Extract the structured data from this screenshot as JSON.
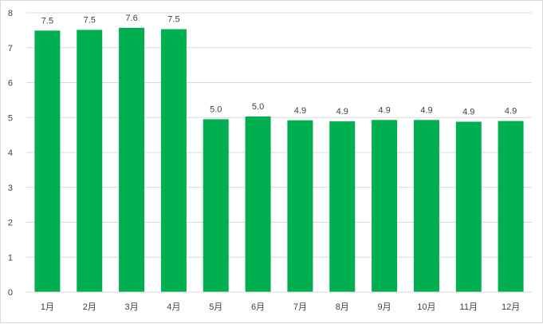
{
  "chart_data": {
    "type": "bar",
    "categories": [
      "1月",
      "2月",
      "3月",
      "4月",
      "5月",
      "6月",
      "7月",
      "8月",
      "9月",
      "10月",
      "11月",
      "12月"
    ],
    "values": [
      7.49,
      7.51,
      7.57,
      7.53,
      4.95,
      5.03,
      4.92,
      4.89,
      4.93,
      4.93,
      4.88,
      4.9
    ],
    "data_labels": [
      "7.5",
      "7.5",
      "7.6",
      "7.5",
      "5.0",
      "5.0",
      "4.9",
      "4.9",
      "4.9",
      "4.9",
      "4.9",
      "4.9"
    ],
    "y_ticks": [
      "0",
      "1",
      "2",
      "3",
      "4",
      "5",
      "6",
      "7",
      "8"
    ],
    "ylim": [
      0,
      8
    ],
    "title": "",
    "xlabel": "",
    "ylabel": "",
    "grid": true,
    "legend": "none",
    "bar_color": "#00b050",
    "grid_color": "#d9d9d9"
  }
}
